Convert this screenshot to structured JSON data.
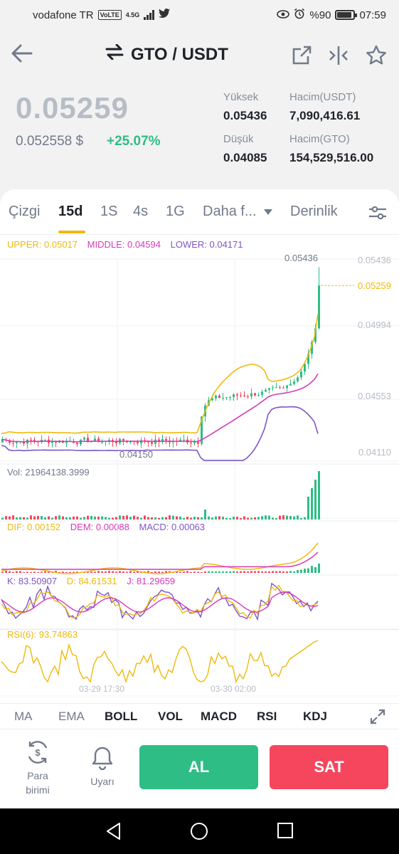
{
  "status_bar": {
    "carrier": "vodafone TR",
    "volte": "VoLTE",
    "network": "4.5G",
    "battery": "%90",
    "time": "07:59"
  },
  "header": {
    "pair": "GTO / USDT"
  },
  "summary": {
    "last_price": "0.05259",
    "usd_price": "0.052558 $",
    "change": "+25.07%",
    "high_label": "Yüksek",
    "high": "0.05436",
    "low_label": "Düşük",
    "low": "0.04085",
    "vol_usdt_label": "Hacim(USDT)",
    "vol_usdt": "7,090,416.61",
    "vol_gto_label": "Hacim(GTO)",
    "vol_gto": "154,529,516.00"
  },
  "chart_tabs": [
    "Çizgi",
    "15d",
    "1S",
    "4s",
    "1G",
    "Daha f...",
    "Derinlik"
  ],
  "active_chart_tab": "15d",
  "legends": {
    "boll": {
      "upper": "UPPER: 0.05017",
      "middle": "MIDDLE: 0.04594",
      "lower": "LOWER: 0.04171"
    },
    "vol": "Vol: 21964138.3999",
    "macd": {
      "dif": "DIF: 0.00152",
      "dem": "DEM: 0.00088",
      "macd": "MACD: 0.00063"
    },
    "kdj": {
      "k": "K: 83.50907",
      "d": "D: 84.61531",
      "j": "J: 81.29659"
    },
    "rsi": "RSI(6): 93.74863"
  },
  "chart_data": {
    "type": "candlestick",
    "price_axis_ticks": [
      "0.05436",
      "0.04994",
      "0.04553",
      "0.04110"
    ],
    "current_price_label": "0.05259",
    "high_marker": "0.05436",
    "low_marker": "0.04150",
    "time_labels": [
      "03-29 17:30",
      "03-30 02:00"
    ],
    "colors": {
      "up": "#2ebd85",
      "down": "#f6465d",
      "upper": "#f0b90b",
      "middle": "#d63ab9",
      "lower": "#7f55c8"
    }
  },
  "indicator_tabs": [
    "MA",
    "EMA",
    "BOLL",
    "VOL",
    "MACD",
    "RSI",
    "KDJ"
  ],
  "active_indicators": [
    "BOLL",
    "VOL",
    "MACD",
    "RSI",
    "KDJ"
  ],
  "actions": {
    "currency_line1": "Para",
    "currency_line2": "birimi",
    "alert": "Uyarı",
    "buy": "AL",
    "sell": "SAT"
  },
  "icons": [
    "back-arrow-icon",
    "swap-icon",
    "share-icon",
    "compare-icon",
    "star-icon",
    "chart-settings-icon",
    "expand-icon",
    "currency-exchange-icon",
    "bell-icon",
    "nav-back-icon",
    "nav-home-icon",
    "nav-recents-icon"
  ]
}
